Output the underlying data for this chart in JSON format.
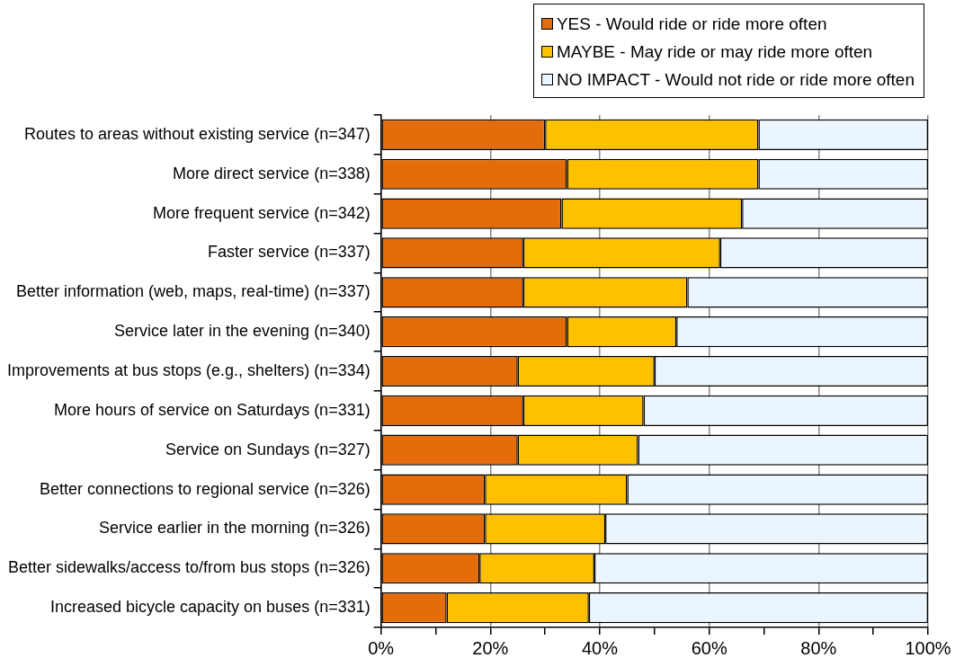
{
  "chart_data": {
    "type": "bar",
    "orientation": "horizontal",
    "stacked": true,
    "categories": [
      "Routes to areas without existing service (n=347)",
      "More direct service (n=338)",
      "More frequent service (n=342)",
      "Faster service (n=337)",
      "Better information (web, maps, real-time) (n=337)",
      "Service later in the evening (n=340)",
      "Improvements at bus stops (e.g., shelters) (n=334)",
      "More hours of service on Saturdays (n=331)",
      "Service on Sundays (n=327)",
      "Better connections to regional service (n=326)",
      "Service earlier in the morning (n=326)",
      "Better sidewalks/access to/from bus stops (n=326)",
      "Increased bicycle capacity on buses (n=331)"
    ],
    "series": [
      {
        "name": "YES - Would ride or ride more often",
        "color": "#e46c0a",
        "values": [
          30,
          34,
          33,
          26,
          26,
          34,
          25,
          26,
          25,
          19,
          19,
          18,
          12
        ]
      },
      {
        "name": "MAYBE - May ride or may ride more often",
        "color": "#ffc000",
        "values": [
          39,
          35,
          33,
          36,
          30,
          20,
          25,
          22,
          22,
          26,
          22,
          21,
          26
        ]
      },
      {
        "name": "NO IMPACT - Would not ride or ride more often",
        "color": "#eaf5fd",
        "values": [
          31,
          31,
          34,
          38,
          44,
          46,
          50,
          52,
          53,
          55,
          59,
          61,
          62
        ]
      }
    ],
    "xlim": [
      0,
      100
    ],
    "xticks": [
      {
        "value": 0,
        "label": "0%"
      },
      {
        "value": 10,
        "label": null
      },
      {
        "value": 20,
        "label": "20%"
      },
      {
        "value": 30,
        "label": null
      },
      {
        "value": 40,
        "label": "40%"
      },
      {
        "value": 50,
        "label": null
      },
      {
        "value": 60,
        "label": "60%"
      },
      {
        "value": 70,
        "label": null
      },
      {
        "value": 80,
        "label": "80%"
      },
      {
        "value": 90,
        "label": null
      },
      {
        "value": 100,
        "label": "100%"
      }
    ],
    "grid": "x",
    "legend": "top right"
  }
}
